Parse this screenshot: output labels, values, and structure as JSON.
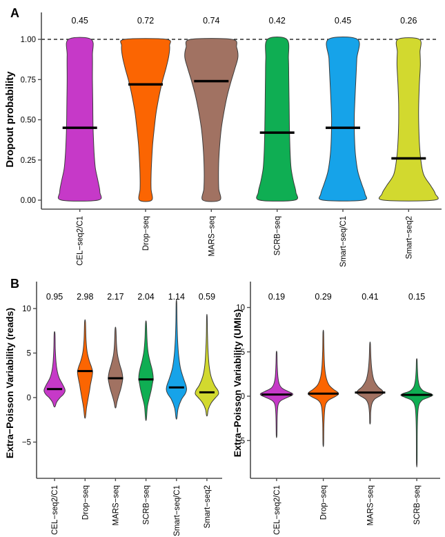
{
  "panels": {
    "a": {
      "label": "A"
    },
    "b": {
      "label": "B"
    }
  },
  "chart_data": [
    {
      "id": "dropout",
      "type": "violin",
      "panel": "A",
      "title": "",
      "xlabel": "",
      "ylabel": "Dropout probability",
      "ylim": [
        0,
        1
      ],
      "grid": false,
      "legend": false,
      "yticks": [
        {
          "v": 0.0,
          "label": "0.00"
        },
        {
          "v": 0.25,
          "label": "0.25"
        },
        {
          "v": 0.5,
          "label": "0.50"
        },
        {
          "v": 0.75,
          "label": "0.75"
        },
        {
          "v": 1.0,
          "label": "1.00"
        }
      ],
      "reference_line": {
        "v": 1.0,
        "style": "dashed",
        "color": "#000000"
      },
      "categories": [
        "CEL−seq2/C1",
        "Drop−seq",
        "MARS−seq",
        "SCRB−seq",
        "Smart−seq/C1",
        "Smart−seq2"
      ],
      "series": [
        {
          "name": "CEL−seq2/C1",
          "color": "#C639C8",
          "median": 0.45,
          "median_label": "0.45",
          "density_profile": [
            [
              1.0,
              0.35
            ],
            [
              0.9,
              0.39
            ],
            [
              0.75,
              0.39
            ],
            [
              0.6,
              0.4
            ],
            [
              0.45,
              0.41
            ],
            [
              0.3,
              0.44
            ],
            [
              0.2,
              0.48
            ],
            [
              0.12,
              0.56
            ],
            [
              0.05,
              0.62
            ],
            [
              0.0,
              0.56
            ]
          ]
        },
        {
          "name": "Drop−seq",
          "color": "#FB6502",
          "median": 0.72,
          "median_label": "0.72",
          "density_profile": [
            [
              1.0,
              0.64
            ],
            [
              0.96,
              0.74
            ],
            [
              0.9,
              0.72
            ],
            [
              0.82,
              0.63
            ],
            [
              0.74,
              0.52
            ],
            [
              0.65,
              0.42
            ],
            [
              0.55,
              0.33
            ],
            [
              0.45,
              0.27
            ],
            [
              0.35,
              0.22
            ],
            [
              0.25,
              0.19
            ],
            [
              0.15,
              0.17
            ],
            [
              0.07,
              0.17
            ],
            [
              0.0,
              0.19
            ]
          ]
        },
        {
          "name": "MARS−seq",
          "color": "#A17262",
          "median": 0.74,
          "median_label": "0.74",
          "density_profile": [
            [
              1.0,
              0.64
            ],
            [
              0.95,
              0.78
            ],
            [
              0.89,
              0.82
            ],
            [
              0.82,
              0.73
            ],
            [
              0.74,
              0.61
            ],
            [
              0.65,
              0.49
            ],
            [
              0.55,
              0.39
            ],
            [
              0.45,
              0.31
            ],
            [
              0.35,
              0.26
            ],
            [
              0.25,
              0.23
            ],
            [
              0.15,
              0.22
            ],
            [
              0.07,
              0.23
            ],
            [
              0.0,
              0.26
            ]
          ]
        },
        {
          "name": "SCRB−seq",
          "color": "#0FAE53",
          "median": 0.42,
          "median_label": "0.42",
          "density_profile": [
            [
              1.0,
              0.3
            ],
            [
              0.88,
              0.35
            ],
            [
              0.75,
              0.36
            ],
            [
              0.6,
              0.37
            ],
            [
              0.45,
              0.38
            ],
            [
              0.3,
              0.4
            ],
            [
              0.2,
              0.43
            ],
            [
              0.12,
              0.5
            ],
            [
              0.05,
              0.58
            ],
            [
              0.0,
              0.54
            ]
          ]
        },
        {
          "name": "Smart−seq/C1",
          "color": "#16A3E9",
          "median": 0.45,
          "median_label": "0.45",
          "density_profile": [
            [
              1.0,
              0.45
            ],
            [
              0.88,
              0.43
            ],
            [
              0.75,
              0.4
            ],
            [
              0.62,
              0.37
            ],
            [
              0.5,
              0.35
            ],
            [
              0.38,
              0.36
            ],
            [
              0.28,
              0.39
            ],
            [
              0.18,
              0.46
            ],
            [
              0.1,
              0.58
            ],
            [
              0.04,
              0.68
            ],
            [
              0.0,
              0.62
            ]
          ]
        },
        {
          "name": "Smart−seq2",
          "color": "#D2D92F",
          "median": 0.26,
          "median_label": "0.26",
          "density_profile": [
            [
              1.0,
              0.33
            ],
            [
              0.92,
              0.35
            ],
            [
              0.84,
              0.36
            ],
            [
              0.72,
              0.33
            ],
            [
              0.6,
              0.31
            ],
            [
              0.48,
              0.31
            ],
            [
              0.36,
              0.33
            ],
            [
              0.26,
              0.37
            ],
            [
              0.16,
              0.46
            ],
            [
              0.09,
              0.68
            ],
            [
              0.04,
              0.82
            ],
            [
              0.0,
              0.78
            ]
          ]
        }
      ]
    },
    {
      "id": "epv_reads",
      "type": "violin",
      "panel": "B",
      "title": "",
      "xlabel": "",
      "ylabel": "Extra−Poisson Variability (reads)",
      "ylim": [
        -9,
        12
      ],
      "grid": false,
      "legend": false,
      "yticks": [
        {
          "v": -5,
          "label": "−5"
        },
        {
          "v": 0,
          "label": "0"
        },
        {
          "v": 5,
          "label": "5"
        },
        {
          "v": 10,
          "label": "10"
        }
      ],
      "categories": [
        "CEL−seq2/C1",
        "Drop−seq",
        "MARS−seq",
        "SCRB−seq",
        "Smart−seq/C1",
        "Smart−seq2"
      ],
      "series": [
        {
          "name": "CEL−seq2/C1",
          "color": "#C639C8",
          "median": 0.95,
          "median_label": "0.95",
          "density_profile": [
            [
              7.2,
              0.03
            ],
            [
              5.5,
              0.05
            ],
            [
              4.0,
              0.1
            ],
            [
              3.0,
              0.18
            ],
            [
              2.2,
              0.32
            ],
            [
              1.5,
              0.55
            ],
            [
              1.0,
              0.7
            ],
            [
              0.7,
              0.72
            ],
            [
              0.3,
              0.58
            ],
            [
              0.0,
              0.38
            ],
            [
              -0.5,
              0.15
            ],
            [
              -1.0,
              0.04
            ]
          ]
        },
        {
          "name": "Drop−seq",
          "color": "#FB6502",
          "median": 2.98,
          "median_label": "2.98",
          "density_profile": [
            [
              8.5,
              0.03
            ],
            [
              6.5,
              0.07
            ],
            [
              5.2,
              0.14
            ],
            [
              4.2,
              0.28
            ],
            [
              3.4,
              0.45
            ],
            [
              2.9,
              0.52
            ],
            [
              2.3,
              0.48
            ],
            [
              1.5,
              0.38
            ],
            [
              0.7,
              0.3
            ],
            [
              -0.2,
              0.2
            ],
            [
              -1.2,
              0.1
            ],
            [
              -2.2,
              0.03
            ]
          ]
        },
        {
          "name": "MARS−seq",
          "color": "#A17262",
          "median": 2.17,
          "median_label": "2.17",
          "density_profile": [
            [
              7.7,
              0.03
            ],
            [
              6.0,
              0.07
            ],
            [
              4.8,
              0.14
            ],
            [
              3.8,
              0.28
            ],
            [
              2.9,
              0.44
            ],
            [
              2.2,
              0.5
            ],
            [
              1.6,
              0.45
            ],
            [
              0.9,
              0.35
            ],
            [
              0.2,
              0.22
            ],
            [
              -0.5,
              0.1
            ],
            [
              -1.1,
              0.03
            ]
          ]
        },
        {
          "name": "SCRB−seq",
          "color": "#0FAE53",
          "median": 2.04,
          "median_label": "2.04",
          "density_profile": [
            [
              8.4,
              0.03
            ],
            [
              6.6,
              0.07
            ],
            [
              5.2,
              0.14
            ],
            [
              4.1,
              0.27
            ],
            [
              3.1,
              0.43
            ],
            [
              2.2,
              0.5
            ],
            [
              1.5,
              0.44
            ],
            [
              0.8,
              0.36
            ],
            [
              0.0,
              0.24
            ],
            [
              -1.0,
              0.1
            ],
            [
              -2.4,
              0.03
            ]
          ]
        },
        {
          "name": "Smart−seq/C1",
          "color": "#16A3E9",
          "median": 1.14,
          "median_label": "1.14",
          "density_profile": [
            [
              10.7,
              0.02
            ],
            [
              8.5,
              0.04
            ],
            [
              6.5,
              0.08
            ],
            [
              4.8,
              0.15
            ],
            [
              3.3,
              0.28
            ],
            [
              2.2,
              0.48
            ],
            [
              1.4,
              0.65
            ],
            [
              0.9,
              0.7
            ],
            [
              0.4,
              0.6
            ],
            [
              -0.2,
              0.35
            ],
            [
              -1.2,
              0.12
            ],
            [
              -2.3,
              0.03
            ]
          ]
        },
        {
          "name": "Smart−seq2",
          "color": "#D2D92F",
          "median": 0.59,
          "median_label": "0.59",
          "density_profile": [
            [
              9.1,
              0.02
            ],
            [
              7.0,
              0.04
            ],
            [
              5.2,
              0.08
            ],
            [
              3.6,
              0.15
            ],
            [
              2.4,
              0.28
            ],
            [
              1.4,
              0.52
            ],
            [
              0.8,
              0.76
            ],
            [
              0.4,
              0.8
            ],
            [
              0.0,
              0.6
            ],
            [
              -0.6,
              0.3
            ],
            [
              -1.3,
              0.1
            ],
            [
              -2.0,
              0.03
            ]
          ]
        }
      ]
    },
    {
      "id": "epv_umis",
      "type": "violin",
      "panel": "B",
      "title": "",
      "xlabel": "",
      "ylabel": "Extra−Poisson Variability (UMIs)",
      "ylim": [
        -9,
        12
      ],
      "grid": false,
      "legend": false,
      "yticks": [
        {
          "v": -5,
          "label": "−5"
        },
        {
          "v": 0,
          "label": "0"
        },
        {
          "v": 5,
          "label": "5"
        },
        {
          "v": 10,
          "label": "10"
        }
      ],
      "categories": [
        "CEL−seq2/C1",
        "Drop−seq",
        "MARS−seq",
        "SCRB−seq"
      ],
      "series": [
        {
          "name": "CEL−seq2/C1",
          "color": "#C639C8",
          "median": 0.19,
          "median_label": "0.19",
          "density_profile": [
            [
              4.9,
              0.015
            ],
            [
              3.5,
              0.03
            ],
            [
              2.2,
              0.06
            ],
            [
              1.4,
              0.12
            ],
            [
              0.9,
              0.25
            ],
            [
              0.55,
              0.52
            ],
            [
              0.3,
              0.72
            ],
            [
              0.1,
              0.7
            ],
            [
              -0.15,
              0.48
            ],
            [
              -0.5,
              0.2
            ],
            [
              -1.0,
              0.07
            ],
            [
              -2.2,
              0.03
            ],
            [
              -4.4,
              0.015
            ]
          ]
        },
        {
          "name": "Drop−seq",
          "color": "#FB6502",
          "median": 0.29,
          "median_label": "0.29",
          "density_profile": [
            [
              7.2,
              0.015
            ],
            [
              5.2,
              0.03
            ],
            [
              3.4,
              0.06
            ],
            [
              2.2,
              0.12
            ],
            [
              1.3,
              0.25
            ],
            [
              0.8,
              0.45
            ],
            [
              0.45,
              0.65
            ],
            [
              0.2,
              0.68
            ],
            [
              -0.1,
              0.5
            ],
            [
              -0.5,
              0.22
            ],
            [
              -1.2,
              0.08
            ],
            [
              -3.0,
              0.03
            ],
            [
              -5.4,
              0.015
            ]
          ]
        },
        {
          "name": "MARS−seq",
          "color": "#A17262",
          "median": 0.41,
          "median_label": "0.41",
          "density_profile": [
            [
              5.9,
              0.015
            ],
            [
              4.2,
              0.04
            ],
            [
              2.8,
              0.09
            ],
            [
              1.8,
              0.18
            ],
            [
              1.1,
              0.35
            ],
            [
              0.65,
              0.55
            ],
            [
              0.35,
              0.6
            ],
            [
              0.05,
              0.45
            ],
            [
              -0.35,
              0.2
            ],
            [
              -0.9,
              0.08
            ],
            [
              -1.8,
              0.03
            ],
            [
              -3.0,
              0.015
            ]
          ]
        },
        {
          "name": "SCRB−seq",
          "color": "#0FAE53",
          "median": 0.15,
          "median_label": "0.15",
          "density_profile": [
            [
              4.1,
              0.015
            ],
            [
              3.0,
              0.03
            ],
            [
              1.9,
              0.06
            ],
            [
              1.1,
              0.13
            ],
            [
              0.6,
              0.3
            ],
            [
              0.3,
              0.62
            ],
            [
              0.1,
              0.72
            ],
            [
              -0.15,
              0.52
            ],
            [
              -0.5,
              0.22
            ],
            [
              -1.3,
              0.07
            ],
            [
              -3.5,
              0.025
            ],
            [
              -7.5,
              0.015
            ]
          ]
        }
      ]
    }
  ]
}
